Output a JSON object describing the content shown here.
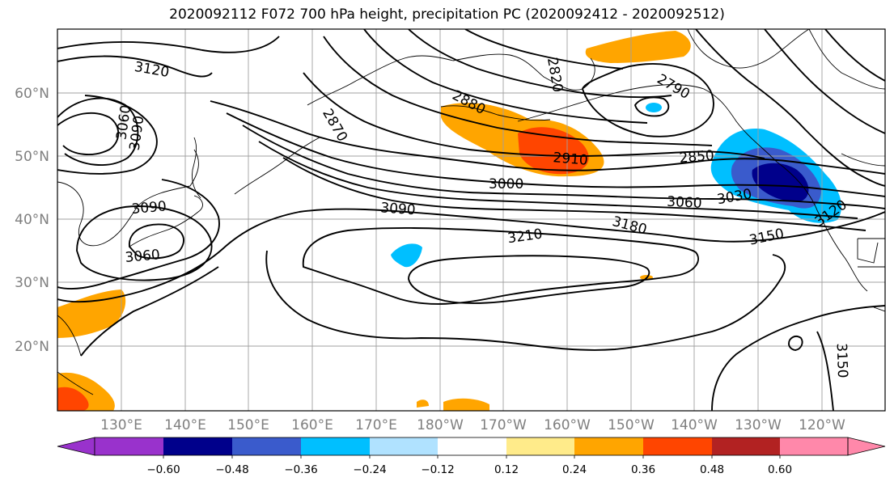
{
  "title": "2020092112 F072 700 hPa height, precipitation PC (2020092412 - 2020092512)",
  "map": {
    "latitude_labels": [
      "60°N",
      "50°N",
      "40°N",
      "30°N",
      "20°N"
    ],
    "longitude_labels": [
      "130°E",
      "140°E",
      "150°E",
      "160°E",
      "170°E",
      "180°W",
      "170°W",
      "160°W",
      "150°W",
      "140°W",
      "130°W",
      "120°W"
    ],
    "contour_labels": [
      "3120",
      "3060",
      "3090",
      "2870",
      "2820",
      "2880",
      "2790",
      "2910",
      "2850",
      "3000",
      "3090",
      "3060",
      "3030",
      "3120",
      "3090",
      "3060",
      "3210",
      "3180",
      "3150",
      "3150"
    ],
    "grid_color": "#a0a0a0",
    "contour_color": "#000000"
  },
  "colorbar": {
    "tick_labels": [
      "−0.60",
      "−0.48",
      "−0.36",
      "−0.24",
      "−0.12",
      "0.12",
      "0.24",
      "0.36",
      "0.48",
      "0.60"
    ],
    "colors": [
      "#9932cc",
      "#00008b",
      "#3a5bcc",
      "#00bfff",
      "#b0e2ff",
      "#ffffff",
      "#ffeb8a",
      "#ffa500",
      "#ff4500",
      "#b22222",
      "#ff88aa"
    ]
  }
}
